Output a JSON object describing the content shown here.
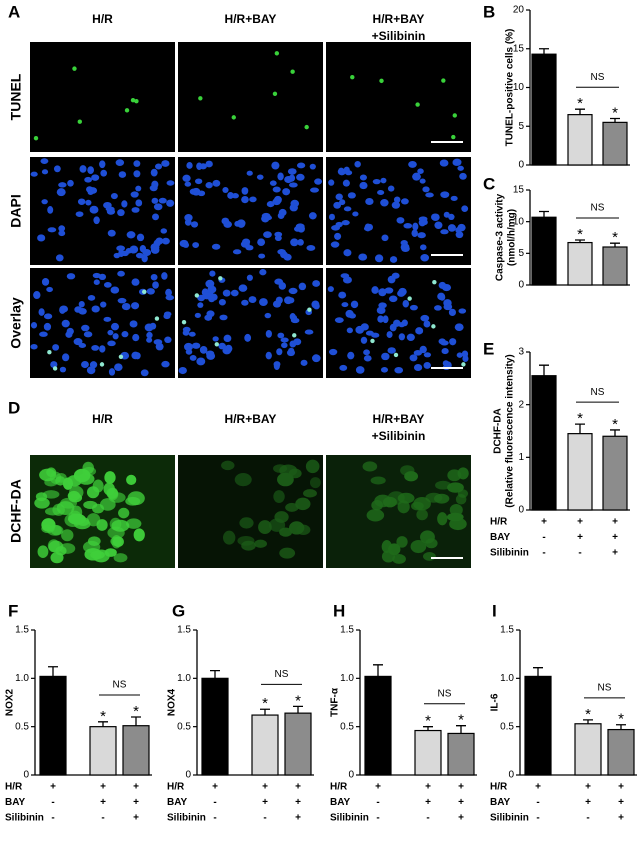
{
  "figure": {
    "panel_a": {
      "letter": "A",
      "columns": [
        [
          "H/R"
        ],
        [
          "H/R+BAY"
        ],
        [
          "H/R+BAY",
          "+Silibinin"
        ]
      ],
      "rows": [
        "TUNEL",
        "DAPI",
        "Overlay"
      ]
    },
    "panel_d": {
      "letter": "D",
      "columns": [
        [
          "H/R"
        ],
        [
          "H/R+BAY"
        ],
        [
          "H/R+BAY",
          "+Silibinin"
        ]
      ],
      "rows": [
        "DCHF-DA"
      ]
    }
  },
  "chart_data": [
    {
      "type": "bar",
      "letter": "B",
      "ylabel": [
        "TUNEL-positive cells (%)"
      ],
      "values": [
        14.3,
        6.5,
        5.5
      ],
      "errors": [
        0.7,
        0.7,
        0.5
      ],
      "colors": [
        "#000000",
        "#d9d9d9",
        "#8c8c8c"
      ],
      "significance": [
        null,
        "*",
        "*"
      ],
      "ns_label": "NS",
      "ylim": [
        0,
        20
      ],
      "yticks": [
        0,
        5,
        10,
        15,
        20
      ]
    },
    {
      "type": "bar",
      "letter": "C",
      "ylabel": [
        "Caspase-3 activity",
        "(nmol/h/mg)"
      ],
      "values": [
        10.7,
        6.7,
        6.0
      ],
      "errors": [
        0.9,
        0.4,
        0.6
      ],
      "colors": [
        "#000000",
        "#d9d9d9",
        "#8c8c8c"
      ],
      "significance": [
        null,
        "*",
        "*"
      ],
      "ns_label": "NS",
      "ylim": [
        0,
        15
      ],
      "yticks": [
        0,
        5,
        10,
        15
      ]
    },
    {
      "type": "bar",
      "letter": "E",
      "ylabel": [
        "DCHF-DA",
        "(Relative fluorescence intensity)"
      ],
      "values": [
        2.55,
        1.45,
        1.4
      ],
      "errors": [
        0.2,
        0.18,
        0.12
      ],
      "colors": [
        "#000000",
        "#d9d9d9",
        "#8c8c8c"
      ],
      "significance": [
        null,
        "*",
        "*"
      ],
      "ns_label": "NS",
      "ylim": [
        0,
        3
      ],
      "yticks": [
        0,
        1,
        2,
        3
      ],
      "conditions": [
        {
          "name": "H/R",
          "signs": [
            "+",
            "+",
            "+"
          ]
        },
        {
          "name": "BAY",
          "signs": [
            "-",
            "+",
            "+"
          ]
        },
        {
          "name": "Silibinin",
          "signs": [
            "-",
            "-",
            "+"
          ]
        }
      ]
    },
    {
      "type": "bar",
      "letter": "F",
      "ylabel": [
        "NOX2"
      ],
      "values": [
        1.02,
        0.5,
        0.51
      ],
      "errors": [
        0.1,
        0.05,
        0.09
      ],
      "colors": [
        "#000000",
        "#d9d9d9",
        "#8c8c8c"
      ],
      "significance": [
        null,
        "*",
        "*"
      ],
      "ns_label": "NS",
      "ylim": [
        0,
        1.5
      ],
      "yticks": [
        0,
        0.5,
        {
          "value": 1,
          "label": "1.0"
        },
        1.5
      ],
      "conditions": [
        {
          "name": "H/R",
          "signs": [
            "+",
            "+",
            "+"
          ]
        },
        {
          "name": "BAY",
          "signs": [
            "-",
            "+",
            "+"
          ]
        },
        {
          "name": "Silibinin",
          "signs": [
            "-",
            "-",
            "+"
          ]
        }
      ]
    },
    {
      "type": "bar",
      "letter": "G",
      "ylabel": [
        "NOX4"
      ],
      "values": [
        1.0,
        0.62,
        0.64
      ],
      "errors": [
        0.08,
        0.06,
        0.07
      ],
      "colors": [
        "#000000",
        "#d9d9d9",
        "#8c8c8c"
      ],
      "significance": [
        null,
        "*",
        "*"
      ],
      "ns_label": "NS",
      "ylim": [
        0,
        1.5
      ],
      "yticks": [
        0,
        0.5,
        {
          "value": 1,
          "label": "1.0"
        },
        1.5
      ],
      "conditions": [
        {
          "name": "H/R",
          "signs": [
            "+",
            "+",
            "+"
          ]
        },
        {
          "name": "BAY",
          "signs": [
            "-",
            "+",
            "+"
          ]
        },
        {
          "name": "Silibinin",
          "signs": [
            "-",
            "-",
            "+"
          ]
        }
      ]
    },
    {
      "type": "bar",
      "letter": "H",
      "ylabel": [
        "TNF-α"
      ],
      "values": [
        1.02,
        0.46,
        0.43
      ],
      "errors": [
        0.12,
        0.04,
        0.08
      ],
      "colors": [
        "#000000",
        "#d9d9d9",
        "#8c8c8c"
      ],
      "significance": [
        null,
        "*",
        "*"
      ],
      "ns_label": "NS",
      "ylim": [
        0,
        1.5
      ],
      "yticks": [
        0,
        0.5,
        {
          "value": 1,
          "label": "1.0"
        },
        1.5
      ],
      "conditions": [
        {
          "name": "H/R",
          "signs": [
            "+",
            "+",
            "+"
          ]
        },
        {
          "name": "BAY",
          "signs": [
            "-",
            "+",
            "+"
          ]
        },
        {
          "name": "Silibinin",
          "signs": [
            "-",
            "-",
            "+"
          ]
        }
      ]
    },
    {
      "type": "bar",
      "letter": "I",
      "ylabel": [
        "IL-6"
      ],
      "values": [
        1.02,
        0.53,
        0.47
      ],
      "errors": [
        0.09,
        0.04,
        0.05
      ],
      "colors": [
        "#000000",
        "#d9d9d9",
        "#8c8c8c"
      ],
      "significance": [
        null,
        "*",
        "*"
      ],
      "ns_label": "NS",
      "ylim": [
        0,
        1.5
      ],
      "yticks": [
        0,
        0.5,
        {
          "value": 1,
          "label": "1.0"
        },
        1.5
      ],
      "conditions": [
        {
          "name": "H/R",
          "signs": [
            "+",
            "+",
            "+"
          ]
        },
        {
          "name": "BAY",
          "signs": [
            "-",
            "+",
            "+"
          ]
        },
        {
          "name": "Silibinin",
          "signs": [
            "-",
            "-",
            "+"
          ]
        }
      ]
    }
  ]
}
